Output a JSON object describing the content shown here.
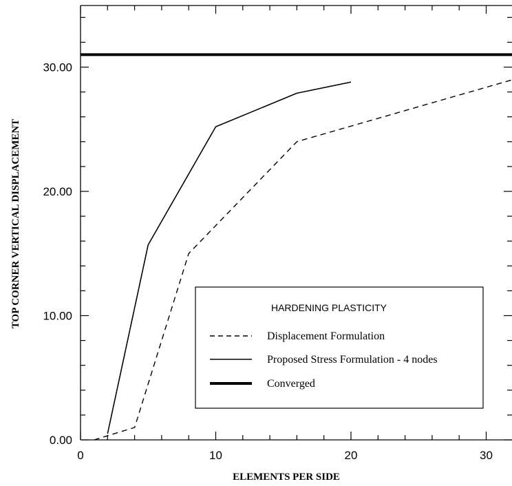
{
  "chart_data": {
    "type": "line",
    "title": "",
    "xlabel": "ELEMENTS PER SIDE",
    "ylabel": "TOP CORNER VERTICAL DISPLACEMENT",
    "xlim": [
      0,
      32
    ],
    "ylim": [
      0,
      35
    ],
    "xticks": [
      0,
      10,
      20,
      30
    ],
    "xtick_labels": [
      "0",
      "10",
      "20",
      "30"
    ],
    "yticks": [
      0,
      10,
      20,
      30
    ],
    "ytick_labels": [
      "0.00",
      "10.00",
      "20.00",
      "30.00"
    ],
    "grid": false,
    "legend": {
      "title": "HARDENING PLASTICITY",
      "placement": "bottom-right"
    },
    "series": [
      {
        "name": "Displacement Formulation",
        "style": "dashed",
        "color": "#000000",
        "x": [
          1,
          4,
          8,
          16,
          32
        ],
        "y": [
          0.0,
          1.0,
          15.0,
          24.0,
          29.0
        ]
      },
      {
        "name": "Proposed Stress Formulation - 4 nodes",
        "style": "solid",
        "color": "#000000",
        "x": [
          2,
          5,
          10,
          16,
          20
        ],
        "y": [
          0.5,
          15.7,
          25.2,
          27.9,
          28.8
        ]
      },
      {
        "name": "Converged",
        "style": "thick",
        "color": "#000000",
        "x": [
          0,
          32
        ],
        "y": [
          31.0,
          31.0
        ]
      }
    ]
  }
}
